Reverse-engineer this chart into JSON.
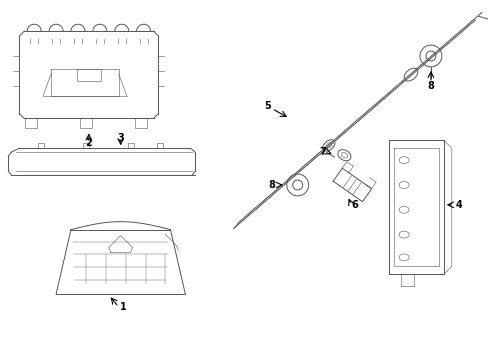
{
  "background_color": "#ffffff",
  "fig_width": 4.89,
  "fig_height": 3.6,
  "dpi": 100,
  "line_color": "#555555",
  "line_width": 0.7,
  "thin_line": 0.4,
  "label_fontsize": 7,
  "label_color": "#000000"
}
